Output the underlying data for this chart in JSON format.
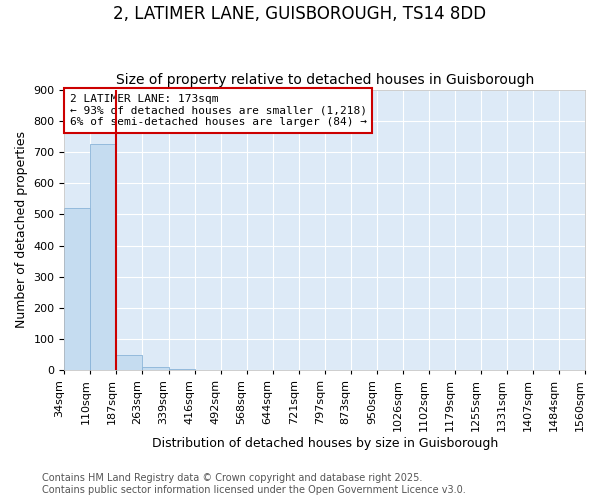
{
  "title1": "2, LATIMER LANE, GUISBOROUGH, TS14 8DD",
  "title2": "Size of property relative to detached houses in Guisborough",
  "xlabel": "Distribution of detached houses by size in Guisborough",
  "ylabel": "Number of detached properties",
  "bar_values": [
    520,
    726,
    48,
    10,
    5,
    2,
    0,
    0,
    0,
    0,
    0,
    0,
    0,
    0,
    0,
    0,
    0,
    0,
    0,
    0
  ],
  "bin_labels": [
    "34sqm",
    "110sqm",
    "187sqm",
    "263sqm",
    "339sqm",
    "416sqm",
    "492sqm",
    "568sqm",
    "644sqm",
    "721sqm",
    "797sqm",
    "873sqm",
    "950sqm",
    "1026sqm",
    "1102sqm",
    "1179sqm",
    "1255sqm",
    "1331sqm",
    "1407sqm",
    "1484sqm",
    "1560sqm"
  ],
  "bar_color": "#c5dcf0",
  "bar_edge_color": "#8ab4d8",
  "plot_bg_color": "#ddeaf7",
  "fig_bg_color": "#ffffff",
  "annotation_text": "2 LATIMER LANE: 173sqm\n← 93% of detached houses are smaller (1,218)\n6% of semi-detached houses are larger (84) →",
  "red_line_bin_index": 2,
  "ylim_max": 900,
  "yticks": [
    0,
    100,
    200,
    300,
    400,
    500,
    600,
    700,
    800,
    900
  ],
  "footer_text": "Contains HM Land Registry data © Crown copyright and database right 2025.\nContains public sector information licensed under the Open Government Licence v3.0.",
  "title_fontsize": 12,
  "subtitle_fontsize": 10,
  "axis_label_fontsize": 9,
  "tick_fontsize": 8,
  "annotation_fontsize": 8,
  "footer_fontsize": 7
}
